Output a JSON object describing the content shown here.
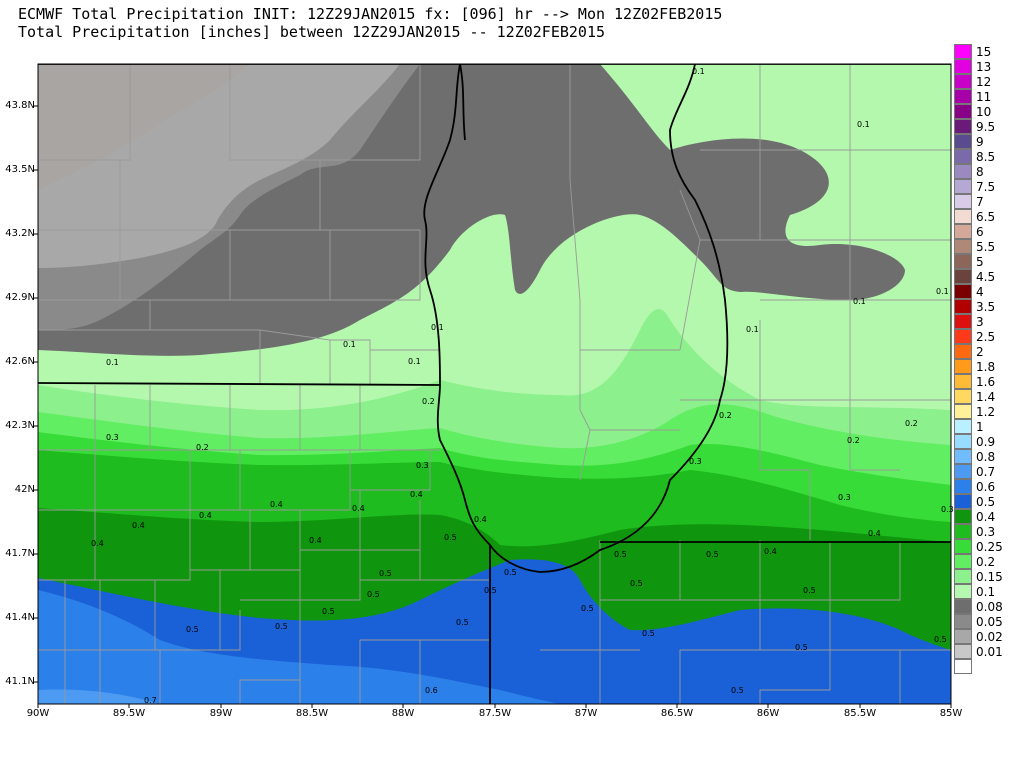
{
  "header": {
    "line1": "ECMWF Total Precipitation INIT: 12Z29JAN2015 fx: [096] hr --> Mon 12Z02FEB2015",
    "line2": "Total Precipitation [inches] between 12Z29JAN2015 -- 12Z02FEB2015"
  },
  "axes": {
    "lat_labels": [
      "43.8N",
      "43.5N",
      "43.2N",
      "42.9N",
      "42.6N",
      "42.3N",
      "42N",
      "41.7N",
      "41.4N",
      "41.1N"
    ],
    "lon_labels": [
      "90W",
      "89.5W",
      "89W",
      "88.5W",
      "88W",
      "87.5W",
      "87W",
      "86.5W",
      "86W",
      "85.5W",
      "85W"
    ]
  },
  "colorbar": {
    "levels": [
      {
        "label": "15",
        "color": "#ff00ff"
      },
      {
        "label": "13",
        "color": "#e000e0"
      },
      {
        "label": "12",
        "color": "#c800c8"
      },
      {
        "label": "11",
        "color": "#a800a8"
      },
      {
        "label": "10",
        "color": "#880088"
      },
      {
        "label": "9.5",
        "color": "#6a1a78"
      },
      {
        "label": "9",
        "color": "#584c8e"
      },
      {
        "label": "8.5",
        "color": "#7a6aaa"
      },
      {
        "label": "8",
        "color": "#9a8ac0"
      },
      {
        "label": "7.5",
        "color": "#b6a8d4"
      },
      {
        "label": "7",
        "color": "#d8cce8"
      },
      {
        "label": "6.5",
        "color": "#f2dcd2"
      },
      {
        "label": "6",
        "color": "#d4a898"
      },
      {
        "label": "5.5",
        "color": "#b08878"
      },
      {
        "label": "5",
        "color": "#8c6658"
      },
      {
        "label": "4.5",
        "color": "#6a443c"
      },
      {
        "label": "4",
        "color": "#7a0000"
      },
      {
        "label": "3.5",
        "color": "#b00000"
      },
      {
        "label": "3",
        "color": "#dd1010"
      },
      {
        "label": "2.5",
        "color": "#ff3a1a"
      },
      {
        "label": "2",
        "color": "#ff6a10"
      },
      {
        "label": "1.8",
        "color": "#ff9a1a"
      },
      {
        "label": "1.6",
        "color": "#ffba38"
      },
      {
        "label": "1.4",
        "color": "#ffd860"
      },
      {
        "label": "1.2",
        "color": "#fff09a"
      },
      {
        "label": "1",
        "color": "#b8f0ff"
      },
      {
        "label": "0.9",
        "color": "#98dcff"
      },
      {
        "label": "0.8",
        "color": "#70bcff"
      },
      {
        "label": "0.7",
        "color": "#4c9af2"
      },
      {
        "label": "0.6",
        "color": "#2c80ea"
      },
      {
        "label": "0.5",
        "color": "#1a60d6"
      },
      {
        "label": "0.4",
        "color": "#10960e"
      },
      {
        "label": "0.3",
        "color": "#1ebc1e"
      },
      {
        "label": "0.25",
        "color": "#38dc38"
      },
      {
        "label": "0.2",
        "color": "#62ee62"
      },
      {
        "label": "0.15",
        "color": "#8cf08c"
      },
      {
        "label": "0.1",
        "color": "#b6f8b0"
      },
      {
        "label": "0.08",
        "color": "#6e6e6e"
      },
      {
        "label": "0.05",
        "color": "#8a8a8a"
      },
      {
        "label": "0.02",
        "color": "#a8a8a8"
      },
      {
        "label": "0.01",
        "color": "#c8c8c8"
      },
      {
        "label": "",
        "color": "#ffffff"
      }
    ]
  },
  "contour_labels": [
    "0.1",
    "0.2",
    "0.3",
    "0.4",
    "0.5",
    "0.6",
    "0.7"
  ]
}
